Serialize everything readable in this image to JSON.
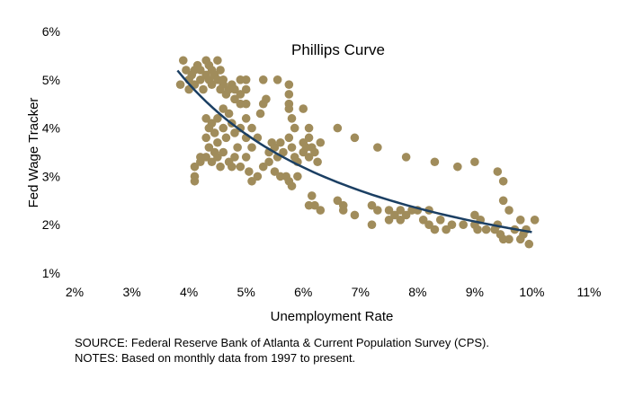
{
  "chart_data": {
    "type": "scatter",
    "title": "Phillips Curve",
    "xlabel": "Unemployment Rate",
    "ylabel": "Fed Wage Tracker",
    "xlim": [
      2,
      11
    ],
    "ylim": [
      1,
      6
    ],
    "x_ticks": [
      "2%",
      "3%",
      "4%",
      "5%",
      "6%",
      "7%",
      "8%",
      "9%",
      "10%",
      "11%"
    ],
    "y_ticks": [
      "1%",
      "2%",
      "3%",
      "4%",
      "5%",
      "6%"
    ],
    "grid": false,
    "point_color": "#A08C5B",
    "fit_color": "#1B3F63",
    "fit": {
      "type": "power",
      "a": 21.6,
      "b": -1.068,
      "x_range": [
        3.8,
        10.0
      ]
    },
    "points": [
      [
        3.85,
        4.9
      ],
      [
        3.9,
        5.4
      ],
      [
        3.95,
        5.2
      ],
      [
        4.0,
        5.0
      ],
      [
        4.0,
        4.8
      ],
      [
        4.05,
        5.1
      ],
      [
        4.1,
        4.9
      ],
      [
        4.1,
        5.2
      ],
      [
        4.15,
        5.3
      ],
      [
        4.2,
        5.0
      ],
      [
        4.2,
        5.2
      ],
      [
        4.25,
        4.8
      ],
      [
        4.3,
        5.4
      ],
      [
        4.3,
        5.1
      ],
      [
        4.35,
        5.0
      ],
      [
        4.35,
        5.3
      ],
      [
        4.4,
        4.9
      ],
      [
        4.4,
        5.2
      ],
      [
        4.45,
        5.1
      ],
      [
        4.5,
        5.4
      ],
      [
        4.5,
        5.0
      ],
      [
        4.55,
        4.8
      ],
      [
        4.55,
        5.2
      ],
      [
        4.6,
        5.0
      ],
      [
        4.6,
        4.9
      ],
      [
        4.65,
        4.7
      ],
      [
        4.7,
        4.8
      ],
      [
        4.75,
        4.9
      ],
      [
        4.8,
        4.8
      ],
      [
        4.8,
        4.6
      ],
      [
        4.9,
        5.0
      ],
      [
        5.0,
        5.0
      ],
      [
        4.9,
        4.7
      ],
      [
        5.0,
        4.8
      ],
      [
        5.0,
        4.5
      ],
      [
        4.9,
        4.5
      ],
      [
        5.3,
        5.0
      ],
      [
        5.55,
        5.0
      ],
      [
        5.75,
        4.9
      ],
      [
        5.75,
        4.7
      ],
      [
        5.75,
        4.5
      ],
      [
        5.75,
        4.4
      ],
      [
        4.3,
        4.2
      ],
      [
        4.35,
        4.0
      ],
      [
        4.3,
        3.8
      ],
      [
        4.4,
        4.1
      ],
      [
        4.45,
        3.9
      ],
      [
        4.5,
        4.2
      ],
      [
        4.5,
        3.7
      ],
      [
        4.6,
        4.4
      ],
      [
        4.6,
        4.0
      ],
      [
        4.65,
        3.8
      ],
      [
        4.7,
        4.3
      ],
      [
        4.75,
        4.1
      ],
      [
        4.8,
        3.9
      ],
      [
        4.85,
        3.6
      ],
      [
        4.9,
        4.0
      ],
      [
        5.0,
        4.2
      ],
      [
        5.0,
        3.8
      ],
      [
        5.1,
        4.0
      ],
      [
        5.1,
        3.6
      ],
      [
        5.2,
        3.8
      ],
      [
        5.25,
        4.3
      ],
      [
        5.3,
        4.5
      ],
      [
        5.35,
        4.6
      ],
      [
        5.4,
        3.5
      ],
      [
        5.45,
        3.7
      ],
      [
        5.5,
        3.6
      ],
      [
        5.55,
        3.4
      ],
      [
        5.6,
        3.7
      ],
      [
        5.65,
        3.5
      ],
      [
        4.3,
        3.4
      ],
      [
        4.35,
        3.6
      ],
      [
        4.4,
        3.3
      ],
      [
        4.45,
        3.5
      ],
      [
        4.5,
        3.4
      ],
      [
        4.55,
        3.2
      ],
      [
        4.6,
        3.5
      ],
      [
        4.7,
        3.3
      ],
      [
        4.75,
        3.2
      ],
      [
        4.8,
        3.4
      ],
      [
        4.9,
        3.2
      ],
      [
        5.0,
        3.4
      ],
      [
        5.05,
        3.1
      ],
      [
        5.1,
        2.9
      ],
      [
        5.2,
        3.0
      ],
      [
        5.3,
        3.2
      ],
      [
        5.4,
        3.3
      ],
      [
        5.5,
        3.1
      ],
      [
        5.6,
        3.0
      ],
      [
        4.2,
        3.3
      ],
      [
        4.1,
        3.2
      ],
      [
        4.1,
        3.0
      ],
      [
        4.1,
        2.9
      ],
      [
        4.2,
        3.4
      ],
      [
        5.8,
        4.2
      ],
      [
        5.85,
        4.0
      ],
      [
        5.75,
        3.8
      ],
      [
        5.8,
        3.6
      ],
      [
        5.85,
        3.4
      ],
      [
        5.9,
        3.3
      ],
      [
        6.0,
        3.7
      ],
      [
        6.0,
        3.5
      ],
      [
        6.05,
        3.6
      ],
      [
        6.1,
        3.4
      ],
      [
        6.15,
        3.6
      ],
      [
        6.2,
        3.5
      ],
      [
        6.25,
        3.3
      ],
      [
        6.0,
        4.4
      ],
      [
        6.1,
        4.0
      ],
      [
        6.3,
        3.7
      ],
      [
        6.1,
        3.8
      ],
      [
        5.9,
        3.0
      ],
      [
        5.75,
        2.9
      ],
      [
        5.8,
        2.8
      ],
      [
        5.7,
        3.0
      ],
      [
        6.6,
        4.0
      ],
      [
        6.9,
        3.8
      ],
      [
        7.3,
        3.6
      ],
      [
        7.8,
        3.4
      ],
      [
        8.3,
        3.3
      ],
      [
        8.7,
        3.2
      ],
      [
        9.0,
        3.3
      ],
      [
        9.4,
        3.1
      ],
      [
        9.5,
        2.9
      ],
      [
        9.5,
        2.5
      ],
      [
        9.6,
        2.3
      ],
      [
        6.1,
        2.4
      ],
      [
        6.15,
        2.6
      ],
      [
        6.2,
        2.4
      ],
      [
        6.3,
        2.3
      ],
      [
        6.6,
        2.5
      ],
      [
        6.7,
        2.4
      ],
      [
        6.7,
        2.3
      ],
      [
        6.9,
        2.2
      ],
      [
        7.2,
        2.4
      ],
      [
        7.2,
        2.0
      ],
      [
        7.3,
        2.3
      ],
      [
        7.5,
        2.3
      ],
      [
        7.5,
        2.1
      ],
      [
        7.6,
        2.2
      ],
      [
        7.7,
        2.3
      ],
      [
        7.7,
        2.1
      ],
      [
        7.8,
        2.2
      ],
      [
        7.9,
        2.3
      ],
      [
        8.0,
        2.3
      ],
      [
        8.1,
        2.1
      ],
      [
        8.2,
        2.3
      ],
      [
        8.2,
        2.0
      ],
      [
        8.3,
        1.9
      ],
      [
        8.4,
        2.1
      ],
      [
        8.5,
        1.9
      ],
      [
        8.6,
        2.0
      ],
      [
        8.8,
        2.0
      ],
      [
        9.0,
        2.2
      ],
      [
        9.0,
        2.0
      ],
      [
        9.05,
        1.9
      ],
      [
        9.1,
        2.1
      ],
      [
        9.2,
        1.9
      ],
      [
        9.35,
        1.9
      ],
      [
        9.4,
        2.0
      ],
      [
        9.45,
        1.8
      ],
      [
        9.5,
        1.7
      ],
      [
        9.6,
        1.7
      ],
      [
        9.7,
        1.9
      ],
      [
        9.8,
        2.1
      ],
      [
        9.8,
        1.7
      ],
      [
        9.9,
        1.9
      ],
      [
        9.95,
        1.6
      ],
      [
        10.05,
        2.1
      ],
      [
        9.85,
        1.8
      ]
    ]
  },
  "notes": {
    "source": "SOURCE: Federal Reserve Bank of Atlanta & Current Population Survey (CPS).",
    "notes": "NOTES: Based on monthly data from 1997 to present."
  }
}
